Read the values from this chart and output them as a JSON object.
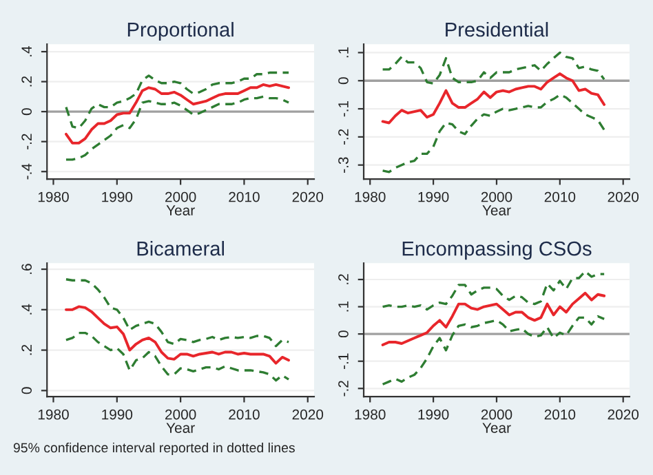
{
  "chart_data": [
    {
      "type": "line",
      "title": "Proportional",
      "xlabel": "Year",
      "x": [
        1982,
        1983,
        1984,
        1985,
        1986,
        1987,
        1988,
        1989,
        1990,
        1991,
        1992,
        1993,
        1994,
        1995,
        1996,
        1997,
        1998,
        1999,
        2000,
        2001,
        2002,
        2003,
        2004,
        2005,
        2006,
        2007,
        2008,
        2009,
        2010,
        2011,
        2012,
        2013,
        2014,
        2015,
        2016,
        2017
      ],
      "series": [
        {
          "color": "#e8262b",
          "line_style": "solid",
          "values": [
            -0.15,
            -0.21,
            -0.21,
            -0.18,
            -0.12,
            -0.08,
            -0.08,
            -0.06,
            -0.02,
            -0.01,
            -0.01,
            0.06,
            0.14,
            0.16,
            0.15,
            0.12,
            0.12,
            0.13,
            0.11,
            0.08,
            0.05,
            0.06,
            0.07,
            0.09,
            0.11,
            0.12,
            0.12,
            0.12,
            0.14,
            0.16,
            0.16,
            0.18,
            0.17,
            0.18,
            0.17,
            0.16
          ]
        },
        {
          "color": "#2e7d32",
          "line_style": "dashed",
          "values": [
            0.03,
            -0.1,
            -0.11,
            -0.06,
            0.02,
            0.05,
            0.03,
            0.03,
            0.06,
            0.07,
            0.09,
            0.12,
            0.21,
            0.24,
            0.21,
            0.19,
            0.19,
            0.2,
            0.19,
            0.15,
            0.12,
            0.13,
            0.15,
            0.18,
            0.19,
            0.19,
            0.19,
            0.2,
            0.22,
            0.22,
            0.25,
            0.25,
            0.26,
            0.26,
            0.26,
            0.26
          ]
        },
        {
          "color": "#2e7d32",
          "line_style": "dashed",
          "values": [
            -0.32,
            -0.32,
            -0.31,
            -0.29,
            -0.25,
            -0.22,
            -0.19,
            -0.16,
            -0.11,
            -0.09,
            -0.11,
            -0.05,
            0.06,
            0.07,
            0.06,
            0.05,
            0.05,
            0.06,
            0.04,
            0.01,
            -0.02,
            -0.01,
            0.01,
            0.03,
            0.05,
            0.05,
            0.05,
            0.06,
            0.08,
            0.09,
            0.09,
            0.1,
            0.09,
            0.09,
            0.08,
            0.06
          ]
        }
      ],
      "xlim": [
        1979,
        2021
      ],
      "xticks": [
        1980,
        1990,
        2000,
        2010,
        2020
      ],
      "ylim": [
        -0.45,
        0.45
      ],
      "yticks": [
        {
          "value": -0.4,
          "label": "-.4"
        },
        {
          "value": -0.2,
          "label": "-.2"
        },
        0,
        {
          "value": 0.2,
          "label": ".2"
        },
        {
          "value": 0.4,
          "label": ".4"
        }
      ],
      "ref_lines": [
        {
          "axis": "y",
          "value": 0,
          "color": "#a0a0a0"
        }
      ],
      "grid": "y"
    },
    {
      "type": "line",
      "title": "Presidential",
      "xlabel": "Year",
      "x": [
        1982,
        1983,
        1984,
        1985,
        1986,
        1987,
        1988,
        1989,
        1990,
        1991,
        1992,
        1993,
        1994,
        1995,
        1996,
        1997,
        1998,
        1999,
        2000,
        2001,
        2002,
        2003,
        2004,
        2005,
        2006,
        2007,
        2008,
        2009,
        2010,
        2011,
        2012,
        2013,
        2014,
        2015,
        2016,
        2017
      ],
      "series": [
        {
          "color": "#e8262b",
          "line_style": "solid",
          "values": [
            -0.145,
            -0.15,
            -0.125,
            -0.105,
            -0.115,
            -0.11,
            -0.105,
            -0.13,
            -0.12,
            -0.08,
            -0.035,
            -0.08,
            -0.095,
            -0.095,
            -0.08,
            -0.065,
            -0.04,
            -0.06,
            -0.04,
            -0.035,
            -0.04,
            -0.03,
            -0.025,
            -0.02,
            -0.02,
            -0.03,
            -0.005,
            0.01,
            0.025,
            0.01,
            0.0,
            -0.035,
            -0.03,
            -0.045,
            -0.05,
            -0.085
          ]
        },
        {
          "color": "#2e7d32",
          "line_style": "dashed",
          "values": [
            0.04,
            0.04,
            0.06,
            0.085,
            0.065,
            0.065,
            0.045,
            -0.005,
            -0.01,
            0.02,
            0.08,
            0.01,
            -0.005,
            -0.005,
            -0.005,
            0.0,
            0.03,
            0.01,
            0.03,
            0.03,
            0.03,
            0.04,
            0.045,
            0.05,
            0.055,
            0.035,
            0.06,
            0.08,
            0.1,
            0.085,
            0.08,
            0.045,
            0.05,
            0.04,
            0.035,
            0.005
          ]
        },
        {
          "color": "#2e7d32",
          "line_style": "dashed",
          "values": [
            -0.32,
            -0.325,
            -0.31,
            -0.3,
            -0.29,
            -0.285,
            -0.26,
            -0.26,
            -0.235,
            -0.18,
            -0.15,
            -0.155,
            -0.18,
            -0.19,
            -0.16,
            -0.135,
            -0.12,
            -0.125,
            -0.11,
            -0.1,
            -0.105,
            -0.1,
            -0.095,
            -0.09,
            -0.095,
            -0.095,
            -0.075,
            -0.065,
            -0.05,
            -0.06,
            -0.08,
            -0.1,
            -0.12,
            -0.13,
            -0.14,
            -0.175
          ]
        }
      ],
      "xlim": [
        1979,
        2021
      ],
      "xticks": [
        1980,
        1990,
        2000,
        2010,
        2020
      ],
      "ylim": [
        -0.35,
        0.13
      ],
      "yticks": [
        {
          "value": -0.3,
          "label": "-.3"
        },
        {
          "value": -0.2,
          "label": "-.2"
        },
        {
          "value": -0.1,
          "label": "-.1"
        },
        0,
        {
          "value": 0.1,
          "label": ".1"
        }
      ],
      "ref_lines": [
        {
          "axis": "y",
          "value": 0,
          "color": "#a0a0a0"
        }
      ],
      "grid": "y"
    },
    {
      "type": "line",
      "title": "Bicameral",
      "xlabel": "Year",
      "x": [
        1982,
        1983,
        1984,
        1985,
        1986,
        1987,
        1988,
        1989,
        1990,
        1991,
        1992,
        1993,
        1994,
        1995,
        1996,
        1997,
        1998,
        1999,
        2000,
        2001,
        2002,
        2003,
        2004,
        2005,
        2006,
        2007,
        2008,
        2009,
        2010,
        2011,
        2012,
        2013,
        2014,
        2015,
        2016,
        2017
      ],
      "series": [
        {
          "color": "#e8262b",
          "line_style": "solid",
          "values": [
            0.4,
            0.4,
            0.415,
            0.41,
            0.39,
            0.36,
            0.33,
            0.31,
            0.315,
            0.28,
            0.2,
            0.23,
            0.25,
            0.26,
            0.24,
            0.19,
            0.16,
            0.155,
            0.18,
            0.18,
            0.17,
            0.18,
            0.185,
            0.19,
            0.18,
            0.19,
            0.19,
            0.18,
            0.185,
            0.18,
            0.18,
            0.18,
            0.17,
            0.135,
            0.165,
            0.15
          ]
        },
        {
          "color": "#2e7d32",
          "line_style": "dashed",
          "values": [
            0.55,
            0.545,
            0.545,
            0.545,
            0.53,
            0.5,
            0.46,
            0.41,
            0.4,
            0.36,
            0.3,
            0.32,
            0.33,
            0.34,
            0.33,
            0.29,
            0.24,
            0.23,
            0.255,
            0.25,
            0.24,
            0.25,
            0.255,
            0.265,
            0.25,
            0.26,
            0.265,
            0.26,
            0.265,
            0.26,
            0.27,
            0.27,
            0.26,
            0.22,
            0.25,
            0.24
          ]
        },
        {
          "color": "#2e7d32",
          "line_style": "dashed",
          "values": [
            0.25,
            0.26,
            0.285,
            0.285,
            0.27,
            0.24,
            0.22,
            0.2,
            0.21,
            0.18,
            0.1,
            0.15,
            0.16,
            0.19,
            0.17,
            0.12,
            0.08,
            0.08,
            0.11,
            0.105,
            0.095,
            0.105,
            0.115,
            0.115,
            0.105,
            0.12,
            0.11,
            0.1,
            0.1,
            0.1,
            0.095,
            0.09,
            0.08,
            0.05,
            0.075,
            0.055
          ]
        }
      ],
      "xlim": [
        1979,
        2021
      ],
      "xticks": [
        1980,
        1990,
        2000,
        2010,
        2020
      ],
      "ylim": [
        -0.03,
        0.63
      ],
      "yticks": [
        0,
        {
          "value": 0.2,
          "label": ".2"
        },
        {
          "value": 0.4,
          "label": ".4"
        },
        {
          "value": 0.6,
          "label": ".6"
        }
      ],
      "grid": "y",
      "annotations": [
        "95% confidence interval reported in dotted lines"
      ]
    },
    {
      "type": "line",
      "title": "Encompassing CSOs",
      "xlabel": "Year",
      "x": [
        1982,
        1983,
        1984,
        1985,
        1986,
        1987,
        1988,
        1989,
        1990,
        1991,
        1992,
        1993,
        1994,
        1995,
        1996,
        1997,
        1998,
        1999,
        2000,
        2001,
        2002,
        2003,
        2004,
        2005,
        2006,
        2007,
        2008,
        2009,
        2010,
        2011,
        2012,
        2013,
        2014,
        2015,
        2016,
        2017
      ],
      "series": [
        {
          "color": "#e8262b",
          "line_style": "solid",
          "values": [
            -0.04,
            -0.03,
            -0.03,
            -0.035,
            -0.025,
            -0.015,
            -0.005,
            0.005,
            0.03,
            0.05,
            0.025,
            0.065,
            0.11,
            0.11,
            0.095,
            0.09,
            0.1,
            0.105,
            0.11,
            0.09,
            0.07,
            0.08,
            0.08,
            0.06,
            0.05,
            0.06,
            0.11,
            0.07,
            0.1,
            0.08,
            0.11,
            0.13,
            0.15,
            0.125,
            0.145,
            0.14
          ]
        },
        {
          "color": "#2e7d32",
          "line_style": "dashed",
          "values": [
            0.1,
            0.105,
            0.1,
            0.1,
            0.105,
            0.1,
            0.105,
            0.09,
            0.105,
            0.115,
            0.11,
            0.14,
            0.18,
            0.18,
            0.145,
            0.16,
            0.17,
            0.17,
            0.165,
            0.14,
            0.125,
            0.14,
            0.135,
            0.115,
            0.11,
            0.12,
            0.185,
            0.16,
            0.195,
            0.165,
            0.205,
            0.205,
            0.23,
            0.21,
            0.22,
            0.22
          ]
        },
        {
          "color": "#2e7d32",
          "line_style": "dashed",
          "values": [
            -0.185,
            -0.175,
            -0.165,
            -0.175,
            -0.16,
            -0.15,
            -0.125,
            -0.09,
            -0.045,
            -0.015,
            -0.06,
            -0.005,
            0.03,
            0.035,
            0.025,
            0.03,
            0.04,
            0.045,
            0.05,
            0.035,
            0.01,
            0.015,
            0.02,
            0.0,
            -0.01,
            -0.005,
            0.025,
            -0.015,
            0.005,
            -0.005,
            0.03,
            0.06,
            0.06,
            0.035,
            0.065,
            0.055
          ]
        }
      ],
      "xlim": [
        1979,
        2021
      ],
      "xticks": [
        1980,
        1990,
        2000,
        2010,
        2020
      ],
      "ylim": [
        -0.23,
        0.26
      ],
      "yticks": [
        {
          "value": -0.2,
          "label": "-.2"
        },
        {
          "value": -0.1,
          "label": "-.1"
        },
        0,
        {
          "value": 0.1,
          "label": ".1"
        },
        {
          "value": 0.2,
          "label": ".2"
        }
      ],
      "ref_lines": [
        {
          "axis": "y",
          "value": 0,
          "color": "#a0a0a0"
        }
      ],
      "grid": "y"
    }
  ]
}
